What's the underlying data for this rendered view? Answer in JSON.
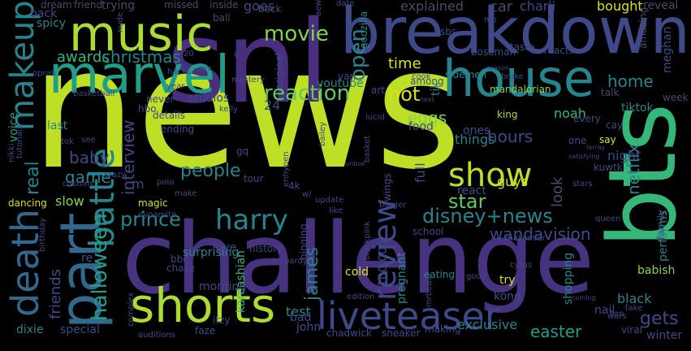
{
  "words": [
    "news",
    "snl",
    "challenge",
    "breakdown",
    "bts",
    "music",
    "marvel",
    "house",
    "part",
    "shorts",
    "live",
    "teaser",
    "death",
    "makeup",
    "battle",
    "show",
    "harry",
    "reaction",
    "review",
    "prince",
    "disney+news",
    "people",
    "movie",
    "awards",
    "christmas",
    "hot",
    "open",
    "time",
    "home",
    "star",
    "wandavision",
    "halloween",
    "james",
    "netflix",
    "interview",
    "eggs",
    "hours",
    "baby",
    "game",
    "noah",
    "easter",
    "gets",
    "explained",
    "real",
    "voice",
    "friends",
    "slow",
    "tiktok",
    "night",
    "look",
    "black",
    "test",
    "babish",
    "car",
    "charli",
    "bought",
    "reveal",
    "things",
    "guys",
    "react",
    "full",
    "pregnant",
    "kardashian",
    "surprising",
    "morning",
    "love",
    "history",
    "binging",
    "ending",
    "sidemen",
    "mandalorian",
    "art",
    "king",
    "among",
    "tik",
    "youtube",
    "original",
    "goes",
    "trying",
    "missed",
    "dream",
    "friend",
    "inside",
    "spicy",
    "back",
    "beck",
    "ball",
    "godzilla",
    "boseman",
    "taste",
    "reacts",
    "talk",
    "amazing",
    "meghan",
    "week",
    "family",
    "performs",
    "cay",
    "say",
    "kuwtk",
    "exclusive",
    "school",
    "shopping",
    "try",
    "kong",
    "bbc",
    "chase",
    "magic",
    "dynamite",
    "dancing",
    "polo",
    "make",
    "update",
    "4k",
    "tour",
    "van",
    "wings",
    "food",
    "ones",
    "cold",
    "eating",
    "100,000",
    "stars",
    "queen",
    "nail",
    "fake",
    "wars",
    "viral",
    "top",
    "winter",
    "chadwick",
    "sneaker",
    "making",
    "john",
    "bad",
    "dixie",
    "special",
    "complex",
    "auditions",
    "faze",
    "itzy",
    "edition",
    "mrbeast",
    "good",
    "cyrus",
    "broke",
    "makeover",
    "coming",
    "jeopardy",
    "birthday",
    "nikki",
    "tutorials",
    "oprah",
    "basketball",
    "never",
    "details",
    "studios",
    "hbo",
    "crazy",
    "custom",
    "blackpink",
    "satisfying",
    "salon",
    "one",
    "every",
    "larray",
    "unbox",
    "mo",
    "sbs",
    "aew",
    "date",
    "cook",
    "next",
    "mv",
    "20",
    "kelly",
    "mystery",
    "bailey",
    "enhypen",
    "w/",
    "like",
    "lucid",
    "basket",
    "burger",
    "year",
    "hacks",
    "nude",
    "reason",
    "see",
    "tok",
    "last",
    "re",
    "24",
    "gq",
    "g",
    "m"
  ]
}
